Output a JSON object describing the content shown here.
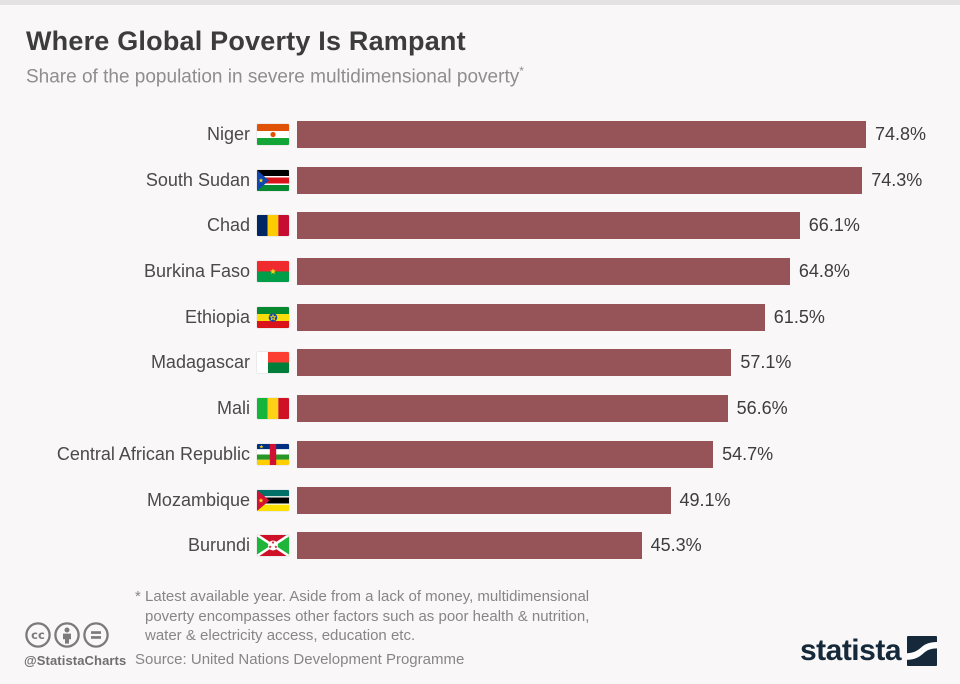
{
  "page": {
    "background": "#f9f7f7",
    "top_strip_color": "#e4e2e2"
  },
  "header": {
    "title": "Where Global Poverty Is Rampant",
    "subtitle": "Share of the population in severe multidimensional poverty",
    "footnote_marker": "*"
  },
  "chart_data": {
    "type": "bar",
    "orientation": "horizontal",
    "unit": "%",
    "grid": false,
    "legend": false,
    "xlim": [
      0,
      78
    ],
    "bar_color": "#965459",
    "categories": [
      "Niger",
      "South Sudan",
      "Chad",
      "Burkina Faso",
      "Ethiopia",
      "Madagascar",
      "Mali",
      "Central African Republic",
      "Mozambique",
      "Burundi"
    ],
    "values": [
      74.8,
      74.3,
      66.1,
      64.8,
      61.5,
      57.1,
      56.6,
      54.7,
      49.1,
      45.3
    ],
    "value_labels": [
      "74.8%",
      "74.3%",
      "66.1%",
      "64.8%",
      "61.5%",
      "57.1%",
      "56.6%",
      "54.7%",
      "49.1%",
      "45.3%"
    ],
    "flags": [
      "niger",
      "south-sudan",
      "chad",
      "burkina-faso",
      "ethiopia",
      "madagascar",
      "mali",
      "central-african-republic",
      "mozambique",
      "burundi"
    ],
    "title": "Where Global Poverty Is Rampant",
    "xlabel": "",
    "ylabel": ""
  },
  "footnote": {
    "marker": "*",
    "line1": "Latest available year. Aside from a lack of money, multidimensional",
    "line2": "poverty encompasses other factors such as poor health & nutrition,",
    "line3": "water & electricity access, education etc."
  },
  "source": "Source: United Nations Development Programme",
  "footer": {
    "handle": "@StatistaCharts",
    "license_icons": [
      "creative-commons-icon",
      "attribution-icon",
      "equals-icon"
    ],
    "brand_name": "statista",
    "brand_color": "#15293b"
  }
}
